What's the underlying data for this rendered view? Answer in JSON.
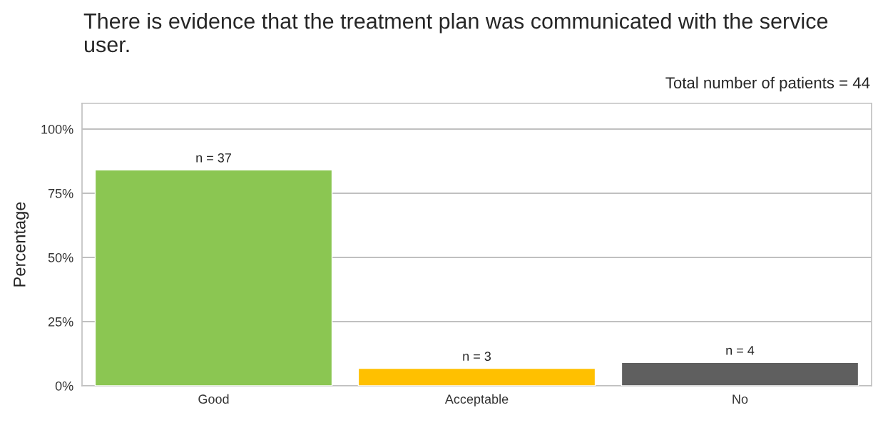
{
  "chart_data": {
    "type": "bar",
    "title": "There is evidence that the treatment plan was communicated with the service user.",
    "subtitle": "Total number of patients = 44",
    "ylabel": "Percentage",
    "categories": [
      "Good",
      "Acceptable",
      "No"
    ],
    "values": [
      84.1,
      6.8,
      9.1
    ],
    "colors": [
      "#8bc652",
      "#ffc000",
      "#5f5f5f"
    ],
    "annotations": [
      {
        "text": "n = 37",
        "x": "Good",
        "y": 84.1
      },
      {
        "text": "n = 3",
        "x": "Acceptable",
        "y": 6.8
      },
      {
        "text": "n = 4",
        "x": "No",
        "y": 9.1
      }
    ],
    "ylim": [
      0,
      110
    ],
    "yticks": [
      {
        "value": 0,
        "label": "0%"
      },
      {
        "value": 25,
        "label": "25%"
      },
      {
        "value": 50,
        "label": "50%"
      },
      {
        "value": 75,
        "label": "75%"
      },
      {
        "value": 100,
        "label": "100%"
      }
    ],
    "grid": "y"
  }
}
